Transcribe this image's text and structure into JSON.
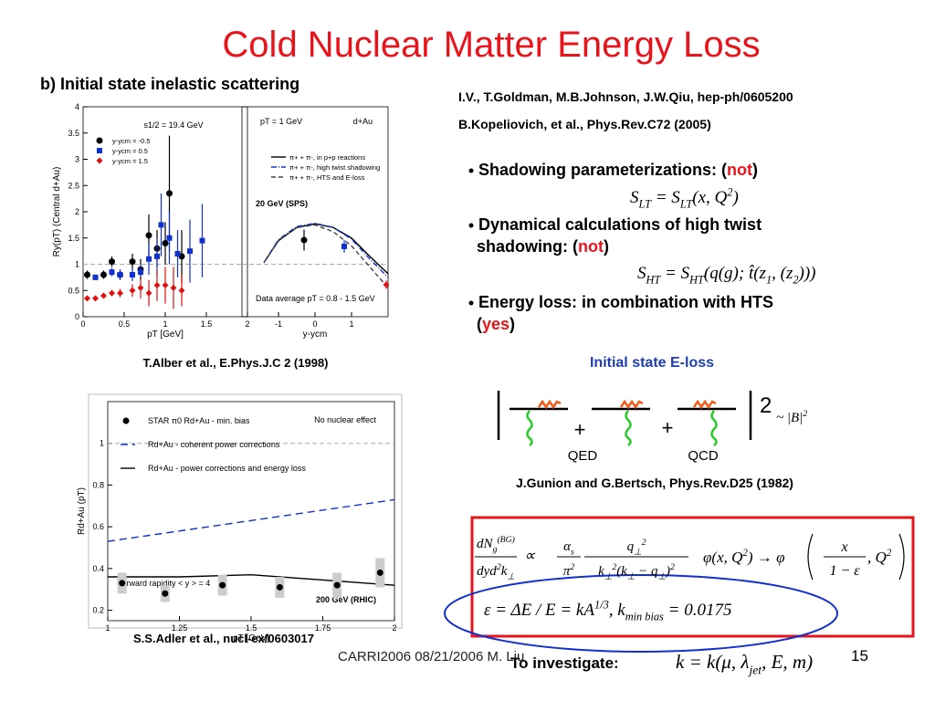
{
  "title": "Cold Nuclear Matter Energy Loss",
  "subtitle": "b) Initial state inelastic scattering",
  "refs": [
    "I.V., T.Goldman, M.B.Johnson, J.W.Qiu, hep-ph/0605200",
    "B.Kopeliovich, et al., Phys.Rev.C72 (2005)"
  ],
  "bullets": [
    {
      "lines": [
        "Shadowing parameterizations: ("
      ],
      "key": "not",
      "end": ")"
    },
    {
      "lines": [
        "Dynamical calculations of high twist",
        "shadowing: ("
      ],
      "key": "not",
      "end": ")"
    },
    {
      "lines": [
        "Energy loss: in combination with HTS",
        "("
      ],
      "key": "yes",
      "end": ")"
    }
  ],
  "eq_lt": [
    {
      "t": "S"
    },
    {
      "sub": "LT"
    },
    {
      "t": " = S"
    },
    {
      "sub": "LT"
    },
    {
      "t": "(x, Q"
    },
    {
      "sup": "2"
    },
    {
      "t": ")"
    }
  ],
  "eq_ht": [
    {
      "t": "S"
    },
    {
      "sub": "HT"
    },
    {
      "t": " = S"
    },
    {
      "sub": "HT"
    },
    {
      "t": "(q(g); t̂(z"
    },
    {
      "sub": "1"
    },
    {
      "t": ", (z"
    },
    {
      "sub": "2"
    },
    {
      "t": ")))"
    }
  ],
  "diagram": {
    "title": "Initial state E-loss",
    "plus": [
      "+",
      "+"
    ],
    "labels": [
      "QED",
      "QCD"
    ],
    "square": "2",
    "approx": [
      {
        "t": "~ |B|"
      },
      {
        "sup": "2"
      }
    ],
    "ref": "J.Gunion and G.Bertsch, Phys.Rev.D25 (1982)"
  },
  "formula": {
    "lhs_num": [
      {
        "t": "dN"
      },
      {
        "sub": "g"
      },
      {
        "sup": "(BG)"
      }
    ],
    "lhs_den": [
      {
        "t": "dyd"
      },
      {
        "sup": "2"
      },
      {
        "t": "k"
      },
      {
        "sub": "⊥"
      }
    ],
    "prop": [
      {
        "t": "∝"
      }
    ],
    "a_num": [
      {
        "t": "α"
      },
      {
        "sub": "s"
      }
    ],
    "a_den": [
      {
        "t": "π"
      },
      {
        "sup": "2"
      }
    ],
    "q_num": [
      {
        "t": "q"
      },
      {
        "sub": "⊥"
      },
      {
        "sup": "2"
      }
    ],
    "q_den": [
      {
        "t": "k"
      },
      {
        "sub": "⊥"
      },
      {
        "sup": "2"
      },
      {
        "t": "(k"
      },
      {
        "sub": "⊥"
      },
      {
        "t": " − q"
      },
      {
        "sub": "⊥"
      },
      {
        "t": ")"
      },
      {
        "sup": "2"
      }
    ],
    "phi": [
      {
        "t": "φ(x, Q"
      },
      {
        "sup": "2"
      },
      {
        "t": ") → φ"
      }
    ],
    "x_num": [
      {
        "t": "x"
      }
    ],
    "x_den": [
      {
        "t": "1 − ε"
      }
    ],
    "tail": [
      {
        "t": ", Q"
      },
      {
        "sup": "2"
      }
    ],
    "eps": [
      {
        "t": "ε = ΔE / E = kA"
      },
      {
        "sup": "1/3"
      },
      {
        "t": ",  k"
      },
      {
        "sub": "min  bias"
      },
      {
        "t": " = 0.0175"
      }
    ]
  },
  "investigate": "To investigate:",
  "invest_eq": [
    {
      "t": "k = k(μ, λ"
    },
    {
      "sub": "jet"
    },
    {
      "t": ", E, m)"
    }
  ],
  "captions": [
    "T.Alber et al., E.Phys.J.C 2 (1998)",
    "S.S.Adler et al., nucl-ex/0603017"
  ],
  "footer": "CARRI2006 08/21/2006   M. Liu",
  "page": "15",
  "chart_data": [
    {
      "type": "scatter",
      "xlim": [
        0,
        2
      ],
      "xticks": [
        0,
        0.5,
        1,
        1.5,
        2
      ],
      "ylim": [
        0,
        4
      ],
      "yticks": [
        0,
        0.5,
        1,
        1.5,
        2,
        2.5,
        3,
        3.5,
        4
      ],
      "xlabel": "pT [GeV]",
      "ylabel": "Ry(pT)  (Central d+Au)",
      "annotations": [
        "s1/2 = 19.4 GeV"
      ],
      "ref": 1,
      "legend": "upper left",
      "series": [
        {
          "name": "y-ycm = -0.5",
          "color": "#000000",
          "marker": "circle",
          "x": [
            0.05,
            0.25,
            0.35,
            0.45,
            0.6,
            0.7,
            0.8,
            0.9,
            1.0,
            1.05,
            1.2
          ],
          "values": [
            0.8,
            0.8,
            1.05,
            0.8,
            1.05,
            0.9,
            1.55,
            1.3,
            1.4,
            2.35,
            1.15
          ],
          "errors": [
            0.08,
            0.08,
            0.1,
            0.1,
            0.15,
            0.2,
            0.4,
            0.35,
            0.4,
            1.1,
            0.5
          ]
        },
        {
          "name": "y-ycm = 0.5",
          "color": "#1030d0",
          "marker": "square",
          "x": [
            0.15,
            0.35,
            0.45,
            0.6,
            0.7,
            0.8,
            0.9,
            0.95,
            1.05,
            1.15,
            1.3,
            1.45
          ],
          "values": [
            0.75,
            0.85,
            0.8,
            0.8,
            0.85,
            1.1,
            1.15,
            1.75,
            1.5,
            1.2,
            1.25,
            1.45
          ],
          "errors": [
            0.05,
            0.08,
            0.1,
            0.12,
            0.15,
            0.3,
            0.35,
            0.6,
            0.5,
            0.45,
            0.6,
            0.7
          ]
        },
        {
          "name": "y-ycm = 1.5",
          "color": "#e01010",
          "marker": "diamond",
          "x": [
            0.05,
            0.15,
            0.25,
            0.35,
            0.45,
            0.6,
            0.7,
            0.8,
            0.9,
            1.0,
            1.1,
            1.2
          ],
          "values": [
            0.35,
            0.35,
            0.4,
            0.45,
            0.45,
            0.5,
            0.55,
            0.45,
            0.6,
            0.6,
            0.55,
            0.5
          ],
          "errors": [
            0.03,
            0.04,
            0.05,
            0.06,
            0.08,
            0.12,
            0.2,
            0.25,
            0.3,
            0.35,
            0.4,
            0.3
          ]
        }
      ]
    },
    {
      "type": "scatter",
      "xlim": [
        -2,
        2
      ],
      "xticks": [
        -1,
        0,
        1
      ],
      "ylim": [
        0,
        4
      ],
      "xlabel": "y-ycm",
      "annotations": [
        "pT = 1 GeV",
        "d+Au",
        "20 GeV (SPS)",
        "Data average  pT = 0.8 - 1.5 GeV"
      ],
      "ref": 1,
      "legend": "upper right",
      "series": [
        {
          "color": "#000000",
          "marker": "circle",
          "x": [
            -0.3
          ],
          "values": [
            1.46
          ],
          "errors": [
            0.2
          ]
        },
        {
          "color": "#1030d0",
          "marker": "square",
          "x": [
            0.8
          ],
          "values": [
            1.34
          ],
          "errors": [
            0.12
          ]
        },
        {
          "color": "#e01010",
          "marker": "diamond",
          "x": [
            1.95
          ],
          "values": [
            0.61
          ],
          "errors": [
            0.08
          ]
        }
      ],
      "lines": [
        {
          "name": "π+ + π-, in p+p reactions",
          "color": "#000000",
          "dash": "",
          "x": [
            -1.4,
            -1,
            -0.5,
            0,
            0.5,
            1,
            1.5,
            2
          ],
          "values": [
            1.03,
            1.45,
            1.7,
            1.77,
            1.7,
            1.5,
            1.15,
            0.82
          ]
        },
        {
          "name": "π+ + π-, high twist shadowing",
          "color": "#1030d0",
          "dash": "6 2 1 2",
          "x": [
            -1.4,
            -1,
            -0.5,
            0,
            0.5,
            1,
            1.5,
            2
          ],
          "values": [
            1.03,
            1.47,
            1.72,
            1.78,
            1.7,
            1.48,
            1.1,
            0.75
          ]
        },
        {
          "name": "π+ + π-, HTS and E-loss",
          "color": "#444444",
          "dash": "5 3",
          "x": [
            -1.4,
            -1,
            -0.5,
            0,
            0.5,
            1,
            1.5,
            2
          ],
          "values": [
            1.03,
            1.45,
            1.7,
            1.75,
            1.62,
            1.35,
            0.95,
            0.55
          ]
        }
      ]
    },
    {
      "type": "scatter",
      "xlim": [
        1,
        2
      ],
      "xticks": [
        1,
        1.25,
        1.5,
        1.75,
        2
      ],
      "ylim": [
        0.15,
        1.2
      ],
      "yticks": [
        0.2,
        0.4,
        0.6,
        0.8,
        1
      ],
      "xlabel": "pT [GeV]",
      "ylabel": "Rd+Au (pT)",
      "annotations": [
        "No nuclear effect",
        "Forward rapidity < y > = 4",
        "200 GeV (RHIC)"
      ],
      "ref": 1,
      "legend": "upper left",
      "series": [
        {
          "name": "STAR π0 Rd+Au - min. bias",
          "color": "#000000",
          "marker": "circle",
          "x": [
            1.05,
            1.2,
            1.4,
            1.6,
            1.8,
            1.95
          ],
          "values": [
            0.33,
            0.28,
            0.32,
            0.31,
            0.32,
            0.38
          ],
          "sys": [
            0.05,
            0.04,
            0.05,
            0.05,
            0.06,
            0.07
          ]
        }
      ],
      "lines": [
        {
          "name": "Rd+Au - coherent power corrections",
          "color": "#1030d0",
          "dash": "8 5",
          "x": [
            1,
            2
          ],
          "values": [
            0.53,
            0.73
          ]
        },
        {
          "name": "Rd+Au - power corrections and energy loss",
          "color": "#000000",
          "dash": "",
          "x": [
            1,
            1.25,
            1.5,
            1.8,
            2
          ],
          "values": [
            0.36,
            0.36,
            0.37,
            0.34,
            0.32
          ]
        }
      ]
    }
  ]
}
